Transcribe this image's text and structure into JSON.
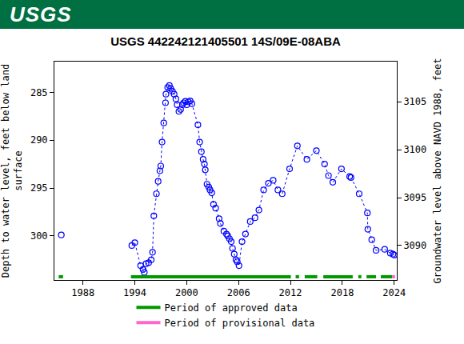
{
  "header": {
    "logo": "USGS"
  },
  "chart_data": {
    "type": "line",
    "title": "USGS 442242121405501 14S/09E-08ABA",
    "xlabel": "",
    "ylabel": "Depth to water level, feet below land\nsurface",
    "y2label": "Groundwater level above NAVD 1988, feet",
    "x": [
      1985.5,
      null,
      1993.65,
      1994.0,
      1994.67,
      1994.95,
      1995.1,
      1995.3,
      1995.6,
      1995.9,
      1996.05,
      1996.2,
      1996.5,
      1996.7,
      1996.9,
      1997.0,
      1997.15,
      1997.35,
      1997.55,
      1997.6,
      1997.8,
      1998.0,
      1998.15,
      1998.35,
      1998.55,
      1998.75,
      1998.9,
      1999.1,
      1999.3,
      1999.5,
      1999.65,
      1999.85,
      2000.0,
      2000.2,
      2000.4,
      2000.6,
      2001.3,
      2001.5,
      2001.7,
      2001.9,
      2002.05,
      2002.15,
      2002.35,
      2002.55,
      2002.7,
      2002.9,
      2003.1,
      2003.35,
      2003.75,
      2003.9,
      2004.3,
      2004.6,
      2004.75,
      2004.95,
      2005.15,
      2005.3,
      2005.5,
      2005.7,
      2005.85,
      2006.05,
      2006.4,
      2006.8,
      2007.35,
      2007.9,
      2008.35,
      2008.9,
      2009.45,
      2010.0,
      2010.55,
      2011.05,
      2011.9,
      2012.8,
      2013.9,
      2015.0,
      2015.95,
      2016.4,
      2016.9,
      2017.9,
      2018.85,
      2019.0,
      2019.95,
      2020.9,
      2020.95,
      2021.4,
      2021.9,
      2022.9,
      2023.55,
      2023.85,
      2024.0
    ],
    "values": [
      299.9,
      null,
      301.0,
      300.7,
      303.1,
      303.5,
      303.8,
      302.9,
      302.8,
      302.5,
      301.7,
      297.9,
      295.6,
      294.3,
      293.2,
      292.7,
      290.2,
      288.2,
      286.1,
      285.2,
      284.5,
      284.3,
      284.6,
      284.9,
      285.2,
      285.7,
      286.3,
      287.0,
      286.8,
      286.3,
      286.1,
      285.95,
      286.3,
      286.0,
      285.9,
      286.2,
      288.4,
      290.2,
      291.2,
      292.0,
      292.5,
      293.1,
      294.6,
      294.9,
      295.2,
      295.5,
      296.7,
      297.1,
      298.2,
      298.7,
      299.5,
      299.8,
      300.0,
      300.3,
      300.6,
      301.3,
      301.9,
      302.5,
      302.7,
      303.1,
      300.6,
      299.8,
      298.5,
      298.1,
      297.3,
      295.2,
      294.5,
      294.2,
      295.2,
      295.6,
      293.0,
      290.6,
      292.0,
      291.1,
      292.5,
      293.7,
      294.4,
      293.0,
      293.8,
      293.9,
      295.6,
      297.6,
      299.3,
      300.4,
      301.5,
      301.4,
      301.8,
      301.9,
      302.0
    ],
    "color": "#0000ff",
    "marker": "circle",
    "line_style": "dotted",
    "xlim": [
      1984.7,
      2024.3
    ],
    "xticks": [
      1988,
      1994,
      2000,
      2006,
      2012,
      2018,
      2024
    ],
    "ylim": [
      304.6,
      281.8
    ],
    "yticks": [
      285,
      290,
      295,
      300
    ],
    "y2lim": [
      3086.4,
      3109.2
    ],
    "y2ticks": [
      3090,
      3095,
      3100,
      3105
    ],
    "grid": false,
    "legend": "bottom",
    "periods": [
      {
        "name": "Period of approved data",
        "color": "#009900",
        "ranges": [
          [
            1985.2,
            1985.7
          ],
          [
            1993.55,
            2012.05
          ],
          [
            2012.6,
            2013.0
          ],
          [
            2013.65,
            2015.1
          ],
          [
            2015.8,
            2019.2
          ],
          [
            2019.85,
            2020.2
          ],
          [
            2020.8,
            2021.9
          ],
          [
            2022.45,
            2023.75
          ]
        ]
      },
      {
        "name": "Period of provisional data",
        "color": "#ff66cc",
        "ranges": [
          [
            2023.75,
            2024.1
          ]
        ]
      }
    ]
  }
}
